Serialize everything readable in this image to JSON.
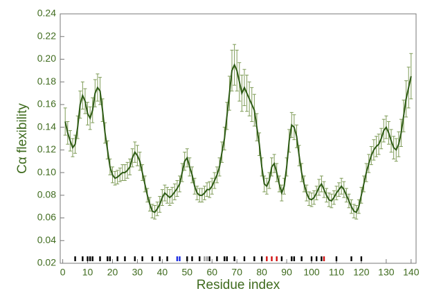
{
  "chart_data": {
    "type": "line",
    "xlabel": "Residue index",
    "ylabel": "Cα flexibility",
    "xlim": [
      -1,
      142
    ],
    "ylim": [
      0.02,
      0.24
    ],
    "xticks": [
      0,
      10,
      20,
      30,
      40,
      50,
      60,
      70,
      80,
      90,
      100,
      110,
      120,
      130,
      140
    ],
    "yticks": [
      0.02,
      0.04,
      0.06,
      0.08,
      {
        "value": 0.1,
        "label": "0.10"
      },
      0.12,
      0.14,
      0.16,
      0.18,
      {
        "value": 0.2,
        "label": "0.20"
      },
      0.22,
      0.24
    ],
    "x": [
      1,
      2,
      3,
      4,
      5,
      6,
      7,
      8,
      9,
      10,
      11,
      12,
      13,
      14,
      15,
      16,
      17,
      18,
      19,
      20,
      21,
      22,
      23,
      24,
      25,
      26,
      27,
      28,
      29,
      30,
      31,
      32,
      33,
      34,
      35,
      36,
      37,
      38,
      39,
      40,
      41,
      42,
      43,
      44,
      45,
      46,
      47,
      48,
      49,
      50,
      51,
      52,
      53,
      54,
      55,
      56,
      57,
      58,
      59,
      60,
      61,
      62,
      63,
      64,
      65,
      66,
      67,
      68,
      69,
      70,
      71,
      72,
      73,
      74,
      75,
      76,
      77,
      78,
      79,
      80,
      81,
      82,
      83,
      84,
      85,
      86,
      87,
      88,
      89,
      90,
      91,
      92,
      93,
      94,
      95,
      96,
      97,
      98,
      99,
      100,
      101,
      102,
      103,
      104,
      105,
      106,
      107,
      108,
      109,
      110,
      111,
      112,
      113,
      114,
      115,
      116,
      117,
      118,
      119,
      120,
      121,
      122,
      123,
      124,
      125,
      126,
      127,
      128,
      129,
      130,
      131,
      132,
      133,
      134,
      135,
      136,
      137,
      138,
      139,
      140
    ],
    "series": [
      {
        "color": "#2d5a14",
        "error_color": "#7d9a55",
        "values": [
          0.145,
          0.135,
          0.128,
          0.122,
          0.125,
          0.14,
          0.16,
          0.168,
          0.163,
          0.152,
          0.148,
          0.155,
          0.17,
          0.175,
          0.172,
          0.155,
          0.135,
          0.12,
          0.105,
          0.098,
          0.095,
          0.096,
          0.098,
          0.1,
          0.1,
          0.102,
          0.105,
          0.113,
          0.118,
          0.115,
          0.11,
          0.1,
          0.09,
          0.08,
          0.072,
          0.066,
          0.065,
          0.068,
          0.072,
          0.078,
          0.082,
          0.08,
          0.078,
          0.08,
          0.083,
          0.086,
          0.09,
          0.1,
          0.11,
          0.113,
          0.105,
          0.098,
          0.088,
          0.082,
          0.08,
          0.08,
          0.082,
          0.085,
          0.085,
          0.088,
          0.093,
          0.098,
          0.105,
          0.118,
          0.13,
          0.15,
          0.17,
          0.19,
          0.195,
          0.19,
          0.18,
          0.17,
          0.175,
          0.17,
          0.165,
          0.16,
          0.155,
          0.14,
          0.125,
          0.105,
          0.09,
          0.088,
          0.093,
          0.105,
          0.108,
          0.1,
          0.09,
          0.082,
          0.088,
          0.105,
          0.128,
          0.142,
          0.14,
          0.132,
          0.115,
          0.1,
          0.09,
          0.082,
          0.077,
          0.076,
          0.078,
          0.082,
          0.087,
          0.09,
          0.085,
          0.08,
          0.076,
          0.075,
          0.078,
          0.082,
          0.085,
          0.088,
          0.085,
          0.08,
          0.075,
          0.07,
          0.066,
          0.065,
          0.07,
          0.08,
          0.09,
          0.1,
          0.108,
          0.115,
          0.12,
          0.123,
          0.125,
          0.13,
          0.137,
          0.14,
          0.135,
          0.128,
          0.122,
          0.12,
          0.125,
          0.135,
          0.15,
          0.165,
          0.175,
          0.185
        ],
        "errors": [
          0.012,
          0.01,
          0.009,
          0.008,
          0.008,
          0.01,
          0.012,
          0.012,
          0.011,
          0.01,
          0.01,
          0.011,
          0.012,
          0.012,
          0.012,
          0.01,
          0.009,
          0.008,
          0.007,
          0.007,
          0.006,
          0.006,
          0.006,
          0.007,
          0.007,
          0.007,
          0.007,
          0.008,
          0.009,
          0.009,
          0.008,
          0.007,
          0.007,
          0.006,
          0.006,
          0.006,
          0.006,
          0.006,
          0.007,
          0.007,
          0.007,
          0.007,
          0.007,
          0.007,
          0.007,
          0.007,
          0.007,
          0.008,
          0.008,
          0.008,
          0.008,
          0.007,
          0.007,
          0.006,
          0.006,
          0.006,
          0.006,
          0.006,
          0.007,
          0.007,
          0.007,
          0.007,
          0.008,
          0.009,
          0.01,
          0.012,
          0.015,
          0.018,
          0.018,
          0.018,
          0.017,
          0.016,
          0.016,
          0.016,
          0.015,
          0.015,
          0.014,
          0.012,
          0.01,
          0.008,
          0.007,
          0.007,
          0.007,
          0.008,
          0.008,
          0.008,
          0.007,
          0.007,
          0.007,
          0.008,
          0.01,
          0.011,
          0.011,
          0.01,
          0.009,
          0.008,
          0.007,
          0.007,
          0.006,
          0.006,
          0.006,
          0.006,
          0.007,
          0.007,
          0.007,
          0.006,
          0.006,
          0.006,
          0.006,
          0.006,
          0.006,
          0.007,
          0.007,
          0.006,
          0.006,
          0.006,
          0.006,
          0.006,
          0.006,
          0.007,
          0.007,
          0.008,
          0.008,
          0.008,
          0.009,
          0.009,
          0.009,
          0.009,
          0.01,
          0.01,
          0.01,
          0.01,
          0.01,
          0.01,
          0.011,
          0.012,
          0.014,
          0.016,
          0.018,
          0.02
        ]
      }
    ],
    "residue_marks": [
      {
        "x": 5,
        "color": "#000"
      },
      {
        "x": 8,
        "color": "#000"
      },
      {
        "x": 10,
        "color": "#000"
      },
      {
        "x": 11,
        "color": "#000"
      },
      {
        "x": 12,
        "color": "#000"
      },
      {
        "x": 15,
        "color": "#000"
      },
      {
        "x": 18,
        "color": "#000"
      },
      {
        "x": 19,
        "color": "#000"
      },
      {
        "x": 22,
        "color": "#000"
      },
      {
        "x": 25,
        "color": "#000"
      },
      {
        "x": 29,
        "color": "#000"
      },
      {
        "x": 32,
        "color": "#000"
      },
      {
        "x": 36,
        "color": "#000"
      },
      {
        "x": 39,
        "color": "#000"
      },
      {
        "x": 42,
        "color": "#000"
      },
      {
        "x": 46,
        "color": "#1a2be0"
      },
      {
        "x": 47,
        "color": "#1a2be0"
      },
      {
        "x": 50,
        "color": "#000"
      },
      {
        "x": 52,
        "color": "#000"
      },
      {
        "x": 55,
        "color": "#000"
      },
      {
        "x": 57,
        "color": "#999"
      },
      {
        "x": 58,
        "color": "#999"
      },
      {
        "x": 59,
        "color": "#000"
      },
      {
        "x": 62,
        "color": "#000"
      },
      {
        "x": 65,
        "color": "#000"
      },
      {
        "x": 66,
        "color": "#000"
      },
      {
        "x": 69,
        "color": "#000"
      },
      {
        "x": 73,
        "color": "#000"
      },
      {
        "x": 77,
        "color": "#000"
      },
      {
        "x": 80,
        "color": "#000"
      },
      {
        "x": 82,
        "color": "#d01010"
      },
      {
        "x": 84,
        "color": "#d01010"
      },
      {
        "x": 86,
        "color": "#d01010"
      },
      {
        "x": 88,
        "color": "#000"
      },
      {
        "x": 92,
        "color": "#000"
      },
      {
        "x": 93,
        "color": "#000"
      },
      {
        "x": 96,
        "color": "#000"
      },
      {
        "x": 100,
        "color": "#000"
      },
      {
        "x": 102,
        "color": "#000"
      },
      {
        "x": 104,
        "color": "#000"
      },
      {
        "x": 105,
        "color": "#d01010"
      },
      {
        "x": 110,
        "color": "#000"
      },
      {
        "x": 116,
        "color": "#000"
      },
      {
        "x": 120,
        "color": "#000"
      }
    ]
  }
}
